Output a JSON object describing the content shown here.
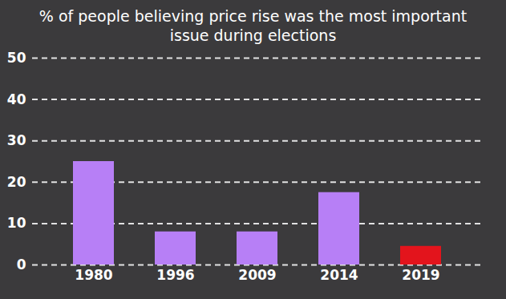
{
  "chart_data": {
    "type": "bar",
    "title": "% of people believing price rise was the most important issue during elections",
    "categories": [
      "1980",
      "1996",
      "2009",
      "2014",
      "2019"
    ],
    "values": [
      25,
      8,
      8,
      17.5,
      4.5
    ],
    "colors": [
      "#b77ff6",
      "#b77ff6",
      "#b77ff6",
      "#b77ff6",
      "#e3141c"
    ],
    "ylim": [
      0,
      50
    ],
    "yticks": [
      0,
      10,
      20,
      30,
      40,
      50
    ],
    "grid": true
  }
}
